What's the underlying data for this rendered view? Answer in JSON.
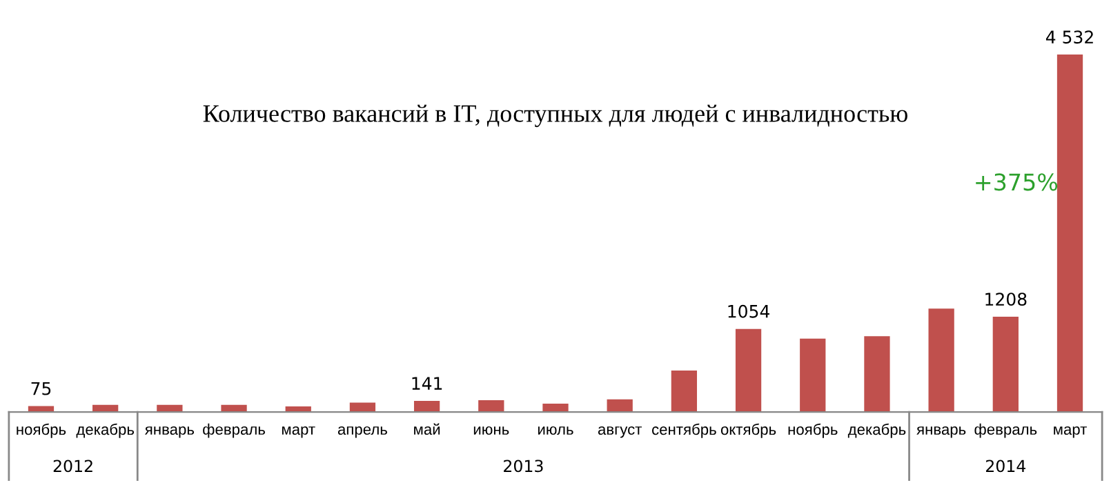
{
  "chart_data": {
    "type": "bar",
    "title": "Количество вакансий в IT, доступных для людей с инвалидностью",
    "categories": [
      "ноябрь",
      "декабрь",
      "январь",
      "февраль",
      "март",
      "апрель",
      "май",
      "июнь",
      "июль",
      "август",
      "сентябрь",
      "октябрь",
      "ноябрь",
      "декабрь",
      "январь",
      "февраль",
      "март"
    ],
    "values": [
      75,
      90,
      90,
      90,
      70,
      120,
      141,
      150,
      105,
      160,
      525,
      1054,
      930,
      960,
      1310,
      1208,
      4532
    ],
    "value_labels": [
      "75",
      null,
      null,
      null,
      null,
      null,
      "141",
      null,
      null,
      null,
      null,
      "1054",
      null,
      null,
      null,
      "1208",
      "4 532"
    ],
    "color": "#c0504d",
    "annotations": [
      "+375%",
      "2012",
      "2013",
      "2014"
    ],
    "grid": false,
    "legend": false
  }
}
